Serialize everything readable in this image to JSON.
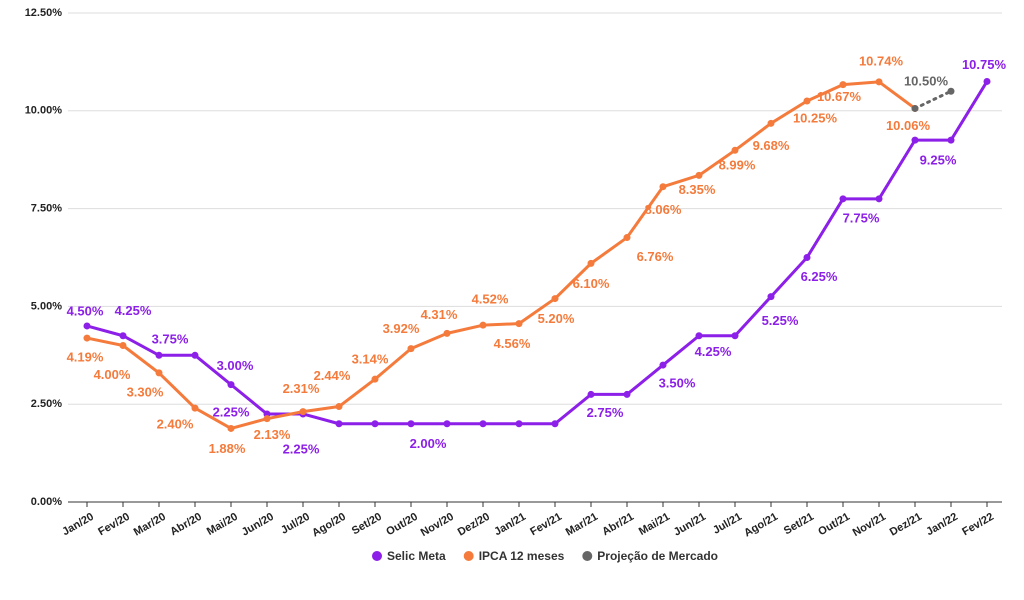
{
  "chart_data": {
    "type": "line",
    "categories": [
      "Jan/20",
      "Fev/20",
      "Mar/20",
      "Abr/20",
      "Mai/20",
      "Jun/20",
      "Jul/20",
      "Ago/20",
      "Set/20",
      "Out/20",
      "Nov/20",
      "Dez/20",
      "Jan/21",
      "Fev/21",
      "Mar/21",
      "Abr/21",
      "Mai/21",
      "Jun/21",
      "Jul/21",
      "Ago/21",
      "Set/21",
      "Out/21",
      "Nov/21",
      "Dez/21",
      "Jan/22",
      "Fev/22"
    ],
    "series": [
      {
        "name": "Selic Meta",
        "color": "#8c1fe8",
        "values": [
          4.5,
          4.25,
          3.75,
          3.75,
          3.0,
          2.25,
          2.25,
          2.0,
          2.0,
          2.0,
          2.0,
          2.0,
          2.0,
          2.0,
          2.75,
          2.75,
          3.5,
          4.25,
          4.25,
          5.25,
          6.25,
          7.75,
          7.75,
          9.25,
          9.25,
          10.75
        ],
        "value_labels": [
          "4.50%",
          "4.25%",
          "3.75%",
          null,
          "3.00%",
          "2.25%",
          "2.25%",
          null,
          null,
          "2.00%",
          null,
          null,
          null,
          null,
          "2.75%",
          null,
          "3.50%",
          "4.25%",
          null,
          "5.25%",
          "6.25%",
          "7.75%",
          null,
          "9.25%",
          null,
          "10.75%"
        ]
      },
      {
        "name": "IPCA 12 meses",
        "color": "#f47b3c",
        "values": [
          4.19,
          4.0,
          3.3,
          2.4,
          1.88,
          2.13,
          2.31,
          2.44,
          3.14,
          3.92,
          4.31,
          4.52,
          4.56,
          5.2,
          6.1,
          6.76,
          8.06,
          8.35,
          8.99,
          9.68,
          10.25,
          10.67,
          10.74,
          10.06,
          null,
          null
        ],
        "value_labels": [
          "4.19%",
          "4.00%",
          "3.30%",
          "2.40%",
          "1.88%",
          "2.13%",
          "2.31%",
          "2.44%",
          "3.14%",
          "3.92%",
          "4.31%",
          "4.52%",
          "4.56%",
          "5.20%",
          "6.10%",
          "6.76%",
          "8.06%",
          "8.35%",
          "8.99%",
          "9.68%",
          "10.25%",
          "10.67%",
          "10.74%",
          "10.06%",
          null,
          null
        ]
      },
      {
        "name": "Projeção de Mercado",
        "color": "#666666",
        "dashed": true,
        "values": [
          null,
          null,
          null,
          null,
          null,
          null,
          null,
          null,
          null,
          null,
          null,
          null,
          null,
          null,
          null,
          null,
          null,
          null,
          null,
          null,
          null,
          null,
          null,
          10.06,
          10.5,
          null
        ],
        "value_labels": [
          null,
          null,
          null,
          null,
          null,
          null,
          null,
          null,
          null,
          null,
          null,
          null,
          null,
          null,
          null,
          null,
          null,
          null,
          null,
          null,
          null,
          null,
          null,
          null,
          "10.50%",
          null
        ]
      }
    ],
    "ylim": [
      0,
      12.5
    ],
    "yticks": [
      {
        "value": 0,
        "label": "0.00%"
      },
      {
        "value": 2.5,
        "label": "2.50%"
      },
      {
        "value": 5,
        "label": "5.00%"
      },
      {
        "value": 7.5,
        "label": "7.50%"
      },
      {
        "value": 10,
        "label": "10.00%"
      },
      {
        "value": 12.5,
        "label": "12.50%"
      }
    ],
    "grid": true,
    "legend": "bottom"
  }
}
